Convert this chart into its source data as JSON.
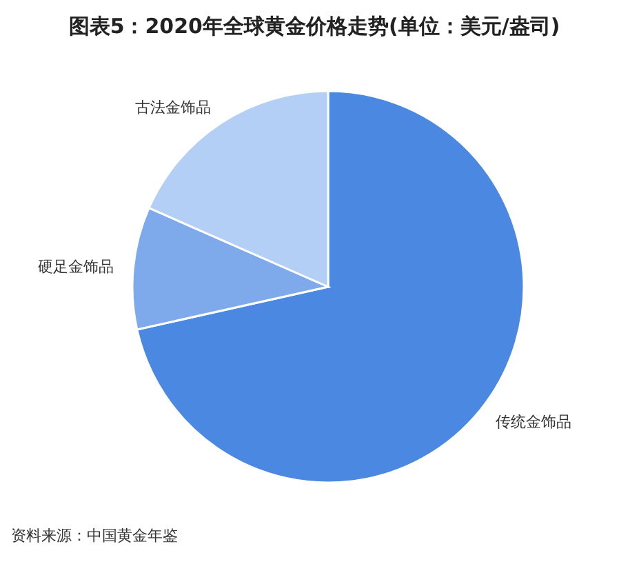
{
  "chart_data": {
    "type": "pie",
    "title": "图表5：2020年全球黄金价格走势(单位：美元/盎司)",
    "categories": [
      "传统金饰品",
      "硬足金饰品",
      "古法金饰品"
    ],
    "values": [
      71.5,
      10.1,
      18.4
    ],
    "colors": [
      "#4a88e2",
      "#7eaaec",
      "#b4cff5"
    ],
    "annotations": [
      "资料来源：中国黄金年鉴"
    ]
  }
}
